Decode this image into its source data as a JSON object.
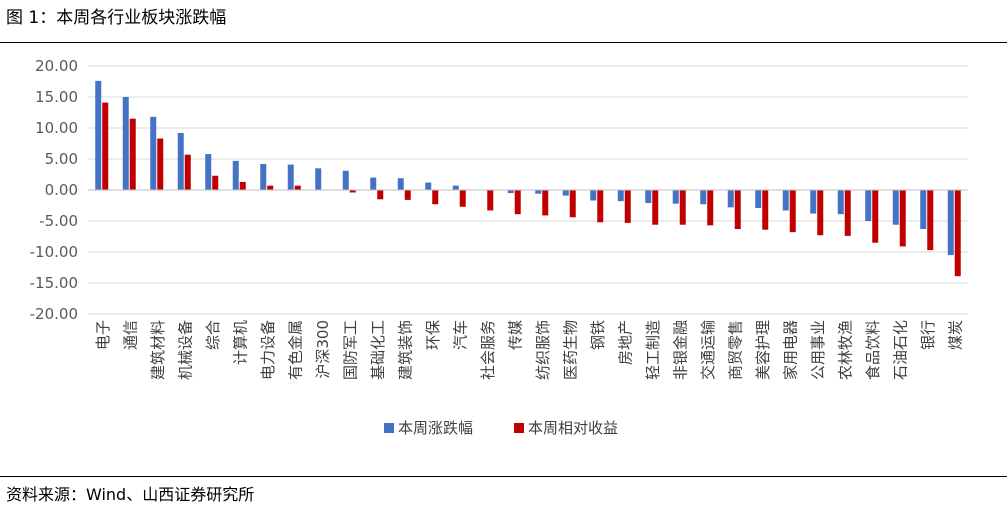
{
  "figure": {
    "title": "图 1：本周各行业板块涨跌幅",
    "source": "资料来源：Wind、山西证券研究所"
  },
  "chart_data": {
    "type": "bar",
    "title": "",
    "xlabel": "",
    "ylabel": "",
    "ylim": [
      -20,
      20
    ],
    "yticks": [
      "20.00",
      "15.00",
      "10.00",
      "5.00",
      "0.00",
      "-5.00",
      "-10.00",
      "-15.00",
      "-20.00"
    ],
    "grid": true,
    "legend_position": "bottom",
    "categories": [
      "电子",
      "通信",
      "建筑材料",
      "机械设备",
      "综合",
      "计算机",
      "电力设备",
      "有色金属",
      "沪深300",
      "国防军工",
      "基础化工",
      "建筑装饰",
      "环保",
      "汽车",
      "社会服务",
      "传媒",
      "纺织服饰",
      "医药生物",
      "钢铁",
      "房地产",
      "轻工制造",
      "非银金融",
      "交通运输",
      "商贸零售",
      "美容护理",
      "家用电器",
      "公用事业",
      "农林牧渔",
      "食品饮料",
      "石油石化",
      "银行",
      "煤炭"
    ],
    "series": [
      {
        "name": "本周涨跌幅",
        "color": "#4472C4",
        "values": [
          17.6,
          15.0,
          11.8,
          9.2,
          5.8,
          4.7,
          4.2,
          4.1,
          3.5,
          3.1,
          2.0,
          1.9,
          1.2,
          0.7,
          0.0,
          -0.5,
          -0.6,
          -0.9,
          -1.7,
          -1.8,
          -2.1,
          -2.2,
          -2.3,
          -2.8,
          -2.9,
          -3.3,
          -3.8,
          -3.9,
          -5.0,
          -5.6,
          -6.3,
          -10.5
        ]
      },
      {
        "name": "本周相对收益",
        "color": "#C00000",
        "values": [
          14.1,
          11.5,
          8.3,
          5.7,
          2.3,
          1.3,
          0.7,
          0.7,
          0.0,
          -0.4,
          -1.5,
          -1.6,
          -2.3,
          -2.7,
          -3.3,
          -3.9,
          -4.1,
          -4.4,
          -5.2,
          -5.3,
          -5.6,
          -5.6,
          -5.7,
          -6.3,
          -6.4,
          -6.8,
          -7.3,
          -7.4,
          -8.5,
          -9.1,
          -9.7,
          -13.9
        ]
      }
    ]
  }
}
